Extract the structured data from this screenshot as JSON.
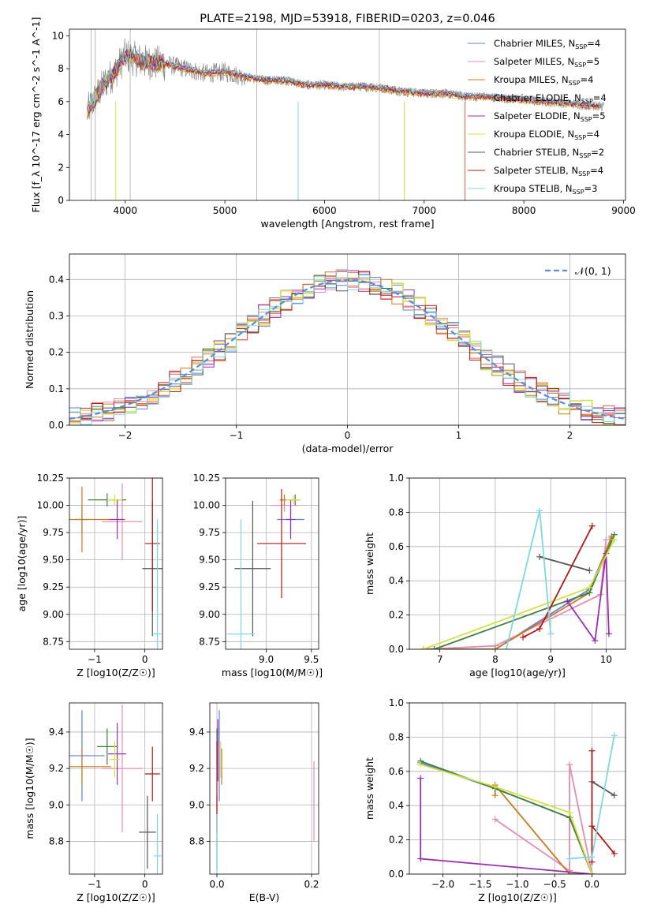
{
  "chart_data": [
    {
      "id": "spectrum",
      "type": "line",
      "title": "PLATE=2198, MJD=53918, FIBERID=0203, z=0.046",
      "xlabel": "wavelength [Angstrom, rest frame]",
      "ylabel": "Flux [f_λ 10^-17 erg cm^-2 s^-1 A^-1]",
      "xlim": [
        3440,
        9020
      ],
      "ylim": [
        0,
        10.4
      ],
      "xticks": [
        4000,
        5000,
        6000,
        7000,
        8000,
        9000
      ],
      "yticks": [
        0,
        2,
        4,
        6,
        8,
        10
      ],
      "legend": "top-right",
      "data_envelope": {
        "x": [
          3600,
          3700,
          3800,
          3900,
          4000,
          4200,
          4400,
          4600,
          4800,
          5000,
          5200,
          5400,
          5600,
          5800,
          6000,
          6200,
          6400,
          6600,
          6800,
          7000,
          7200,
          7400,
          7600,
          7800,
          8000,
          8200,
          8400,
          8600,
          8800
        ],
        "y": [
          5.2,
          6.2,
          7.2,
          7.8,
          8.8,
          8.4,
          8.3,
          8.0,
          7.7,
          7.8,
          7.5,
          7.3,
          7.3,
          7.0,
          7.0,
          6.9,
          6.9,
          6.8,
          6.6,
          6.5,
          6.5,
          6.3,
          6.3,
          6.2,
          6.1,
          6.0,
          5.9,
          5.8,
          5.7
        ]
      },
      "model_offsets": [
        0.05,
        -0.05,
        0.1,
        -0.1,
        0.08,
        -0.08,
        0.02,
        -0.02,
        0.12
      ],
      "legend_entries": [
        {
          "name": "Chabrier MILES, N",
          "sub": "SSP",
          "suffix": "=4",
          "color": "#5f7fdd"
        },
        {
          "name": "Salpeter MILES, N",
          "sub": "SSP",
          "suffix": "=5",
          "color": "#e58cb4"
        },
        {
          "name": "Kroupa MILES, N",
          "sub": "SSP",
          "suffix": "=4",
          "color": "#c87a1e"
        },
        {
          "name": "Chabrier ELODIE, N",
          "sub": "SSP",
          "suffix": "=4",
          "color": "#e06040"
        },
        {
          "name": "Salpeter ELODIE, N",
          "sub": "SSP",
          "suffix": "=5",
          "color": "#9a2fb0"
        },
        {
          "name": "Kroupa ELODIE, N",
          "sub": "SSP",
          "suffix": "=4",
          "color": "#d4e040"
        },
        {
          "name": "Chabrier STELIB, N",
          "sub": "SSP",
          "suffix": "=2",
          "color": "#555555"
        },
        {
          "name": "Salpeter STELIB, N",
          "sub": "SSP",
          "suffix": "=4",
          "color": "#b01818"
        },
        {
          "name": "Kroupa STELIB, N",
          "sub": "SSP",
          "suffix": "=3",
          "color": "#7ed8e0"
        }
      ]
    },
    {
      "id": "residuals",
      "type": "line",
      "xlabel": "(data-model)/error",
      "ylabel": "Normed distribution",
      "xlim": [
        -2.5,
        2.5
      ],
      "ylim": [
        0,
        0.47
      ],
      "xticks": [
        -2,
        -1,
        0,
        1,
        2
      ],
      "yticks": [
        0.0,
        0.1,
        0.2,
        0.3,
        0.4
      ],
      "legend": "top-right",
      "gaussian_label": "𝒩(0, 1)",
      "gaussian_color": "#5b8bd9",
      "series_colors": [
        "#5f7fdd",
        "#e58cb4",
        "#c87a1e",
        "#e06040",
        "#9a2fb0",
        "#d4e040",
        "#555555",
        "#b01818",
        "#7ed8e0"
      ]
    },
    {
      "id": "age-vs-Z",
      "type": "scatter",
      "xlabel": "Z [log10(Z/Z☉)]",
      "ylabel": "age [log10(age/yr)]",
      "xlim": [
        -1.5,
        0.35
      ],
      "ylim": [
        8.68,
        10.25
      ],
      "xticks": [
        -1,
        0
      ],
      "yticks": [
        8.75,
        9.0,
        9.25,
        9.5,
        9.75,
        10.0,
        10.25
      ],
      "points": [
        {
          "x": -1.25,
          "y": 9.87,
          "ex": 0.12,
          "ey": 0.12,
          "color": "#5f7fdd"
        },
        {
          "x": -0.45,
          "y": 9.85,
          "ex": 0.4,
          "ey": 0.35,
          "color": "#e58cb4"
        },
        {
          "x": -1.25,
          "y": 9.87,
          "ex": 0.58,
          "ey": 0.3,
          "color": "#c87a1e"
        },
        {
          "x": -0.75,
          "y": 10.05,
          "ex": 0.38,
          "ey": 0.06,
          "color": "#3f7f3f"
        },
        {
          "x": -0.55,
          "y": 9.87,
          "ex": 0.15,
          "ey": 0.18,
          "color": "#9a2fb0"
        },
        {
          "x": -0.6,
          "y": 10.05,
          "ex": 0.15,
          "ey": 0.05,
          "color": "#d4e040"
        },
        {
          "x": 0.15,
          "y": 9.42,
          "ex": 0.2,
          "ey": 0.62,
          "color": "#555555"
        },
        {
          "x": 0.15,
          "y": 9.65,
          "ex": 0.15,
          "ey": 0.62,
          "color": "#b01818"
        },
        {
          "x": 0.25,
          "y": 8.82,
          "ex": 0.08,
          "ey": 1.05,
          "color": "#7ed8e0"
        }
      ]
    },
    {
      "id": "age-vs-mass",
      "type": "scatter",
      "xlabel": "mass [log10(M/M☉)]",
      "ylabel": "",
      "xlim": [
        8.55,
        9.58
      ],
      "ylim": [
        8.68,
        10.25
      ],
      "xticks": [
        9.0,
        9.5
      ],
      "yticks": [
        8.75,
        9.0,
        9.25,
        9.5,
        9.75,
        10.0,
        10.25
      ],
      "points": [
        {
          "x": 9.27,
          "y": 9.87,
          "ex": 0.15,
          "ey": 0.12,
          "color": "#5f7fdd"
        },
        {
          "x": 9.2,
          "y": 10.0,
          "ex": 0.15,
          "ey": 0.06,
          "color": "#e58cb4"
        },
        {
          "x": 9.2,
          "y": 10.05,
          "ex": 0.05,
          "ey": 0.05,
          "color": "#c87a1e"
        },
        {
          "x": 9.32,
          "y": 10.05,
          "ex": 0.05,
          "ey": 0.05,
          "color": "#3f7f3f"
        },
        {
          "x": 9.27,
          "y": 9.87,
          "ex": 0.05,
          "ey": 0.18,
          "color": "#9a2fb0"
        },
        {
          "x": 9.3,
          "y": 10.05,
          "ex": 0.08,
          "ey": 0.04,
          "color": "#d4e040"
        },
        {
          "x": 8.85,
          "y": 9.42,
          "ex": 0.2,
          "ey": 0.62,
          "color": "#555555"
        },
        {
          "x": 9.17,
          "y": 9.65,
          "ex": 0.27,
          "ey": 0.5,
          "color": "#b01818"
        },
        {
          "x": 8.72,
          "y": 8.82,
          "ex": 0.15,
          "ey": 1.05,
          "color": "#7ed8e0"
        }
      ]
    },
    {
      "id": "weight-vs-age",
      "type": "line",
      "xlabel": "age [log10(age/yr)]",
      "ylabel": "mass weight",
      "xlim": [
        6.45,
        10.35
      ],
      "ylim": [
        0,
        1.0
      ],
      "xticks": [
        7,
        8,
        9,
        10
      ],
      "yticks": [
        0.0,
        0.2,
        0.4,
        0.6,
        0.8,
        1.0
      ],
      "series": [
        {
          "name": "Chabrier MILES",
          "color": "#5f7fdd",
          "x": [
            6.7,
            8.0,
            9.7,
            10.1
          ],
          "y": [
            0.0,
            0.0,
            0.35,
            0.65
          ]
        },
        {
          "name": "Salpeter MILES",
          "color": "#e58cb4",
          "x": [
            6.7,
            8.0,
            9.9,
            10.0
          ],
          "y": [
            0.0,
            0.02,
            0.32,
            0.64
          ]
        },
        {
          "name": "Kroupa MILES",
          "color": "#c87a1e",
          "x": [
            6.7,
            8.0,
            9.7,
            10.1
          ],
          "y": [
            0.0,
            0.0,
            0.33,
            0.66
          ]
        },
        {
          "name": "Chabrier ELODIE",
          "color": "#3f7f3f",
          "x": [
            6.9,
            9.7,
            10.15
          ],
          "y": [
            0.0,
            0.33,
            0.67
          ]
        },
        {
          "name": "Salpeter ELODIE",
          "color": "#9a2fb0",
          "x": [
            9.3,
            9.8,
            10.0,
            10.05
          ],
          "y": [
            0.28,
            0.05,
            0.56,
            0.09
          ]
        },
        {
          "name": "Kroupa ELODIE",
          "color": "#d4e040",
          "x": [
            6.7,
            9.7,
            10.15
          ],
          "y": [
            0.0,
            0.36,
            0.64
          ]
        },
        {
          "name": "Chabrier STELIB",
          "color": "#555555",
          "x": [
            8.8,
            9.7
          ],
          "y": [
            0.54,
            0.46
          ]
        },
        {
          "name": "Salpeter STELIB",
          "color": "#b01818",
          "x": [
            8.5,
            8.8,
            9.75
          ],
          "y": [
            0.07,
            0.12,
            0.72
          ]
        },
        {
          "name": "Kroupa STELIB",
          "color": "#7ed8e0",
          "x": [
            8.2,
            8.8,
            9.0
          ],
          "y": [
            0.0,
            0.81,
            0.09
          ]
        }
      ]
    },
    {
      "id": "mass-vs-Z",
      "type": "scatter",
      "xlabel": "Z [log10(Z/Z☉)]",
      "ylabel": "mass [log10(M/M☉)]",
      "xlim": [
        -1.5,
        0.35
      ],
      "ylim": [
        8.62,
        9.56
      ],
      "xticks": [
        -1,
        0
      ],
      "yticks": [
        8.8,
        9.0,
        9.2,
        9.4
      ],
      "points": [
        {
          "x": -1.25,
          "y": 9.27,
          "ex": 0.45,
          "ey": 0.25,
          "color": "#5f7fdd"
        },
        {
          "x": -0.45,
          "y": 9.2,
          "ex": 0.4,
          "ey": 0.35,
          "color": "#e58cb4"
        },
        {
          "x": -1.25,
          "y": 9.21,
          "ex": 0.58,
          "ey": 0.1,
          "color": "#c87a1e"
        },
        {
          "x": -0.75,
          "y": 9.32,
          "ex": 0.2,
          "ey": 0.1,
          "color": "#3f7f3f"
        },
        {
          "x": -0.55,
          "y": 9.28,
          "ex": 0.18,
          "ey": 0.17,
          "color": "#9a2fb0"
        },
        {
          "x": -0.6,
          "y": 9.25,
          "ex": 0.1,
          "ey": 0.1,
          "color": "#d4e040"
        },
        {
          "x": 0.05,
          "y": 8.85,
          "ex": 0.17,
          "ey": 0.2,
          "color": "#555555"
        },
        {
          "x": 0.15,
          "y": 9.17,
          "ex": 0.15,
          "ey": 0.15,
          "color": "#b01818"
        },
        {
          "x": 0.25,
          "y": 8.72,
          "ex": 0.08,
          "ey": 0.23,
          "color": "#7ed8e0"
        }
      ]
    },
    {
      "id": "mass-vs-ebv",
      "type": "scatter",
      "xlabel": "E(B-V)",
      "ylabel": "",
      "xlim": [
        -0.015,
        0.215
      ],
      "ylim": [
        8.62,
        9.56
      ],
      "xticks": [
        0.0,
        0.2
      ],
      "yticks": [
        8.8,
        9.0,
        9.2,
        9.4
      ],
      "points": [
        {
          "x": 0.005,
          "y": 9.27,
          "ex": 0,
          "ey": 0.25,
          "color": "#5f7fdd"
        },
        {
          "x": 0.205,
          "y": 9.02,
          "ex": 0,
          "ey": 0.22,
          "color": "#e58cb4"
        },
        {
          "x": 0.01,
          "y": 9.21,
          "ex": 0,
          "ey": 0.1,
          "color": "#c87a1e"
        },
        {
          "x": 0.0,
          "y": 9.32,
          "ex": 0,
          "ey": 0.1,
          "color": "#3f7f3f"
        },
        {
          "x": 0.002,
          "y": 9.3,
          "ex": 0,
          "ey": 0.17,
          "color": "#9a2fb0"
        },
        {
          "x": 0.008,
          "y": 9.25,
          "ex": 0,
          "ey": 0.1,
          "color": "#d4e040"
        },
        {
          "x": 0.0,
          "y": 8.85,
          "ex": 0,
          "ey": 0.2,
          "color": "#555555"
        },
        {
          "x": 0.0,
          "y": 9.1,
          "ex": 0,
          "ey": 0.25,
          "color": "#b01818"
        },
        {
          "x": 0.0,
          "y": 8.72,
          "ex": 0,
          "ey": 0.23,
          "color": "#7ed8e0"
        }
      ]
    },
    {
      "id": "weight-vs-Z",
      "type": "line",
      "xlabel": "Z [log10(Z/Z☉)]",
      "ylabel": "mass weight",
      "xlim": [
        -2.45,
        0.45
      ],
      "ylim": [
        0,
        1.0
      ],
      "xticks": [
        -2.0,
        -1.5,
        -1.0,
        -0.5,
        0.0
      ],
      "yticks": [
        0.0,
        0.2,
        0.4,
        0.6,
        0.8,
        1.0
      ],
      "series": [
        {
          "name": "Chabrier MILES",
          "color": "#5f7fdd",
          "x": [
            -2.3,
            -1.3,
            -0.3,
            0.0
          ],
          "y": [
            0.65,
            0.5,
            0.33,
            0.0
          ]
        },
        {
          "name": "Salpeter MILES",
          "color": "#e58cb4",
          "x": [
            -1.3,
            -0.3,
            -0.3,
            0.0
          ],
          "y": [
            0.32,
            0.02,
            0.64,
            0.0
          ]
        },
        {
          "name": "Kroupa MILES",
          "color": "#c87a1e",
          "x": [
            -1.3,
            -1.3,
            -0.3,
            0.0
          ],
          "y": [
            0.46,
            0.52,
            0.0,
            0.0
          ]
        },
        {
          "name": "Chabrier ELODIE",
          "color": "#3f7f3f",
          "x": [
            -2.3,
            -1.3,
            -0.3,
            0.0
          ],
          "y": [
            0.66,
            0.5,
            0.33,
            0.0
          ]
        },
        {
          "name": "Salpeter ELODIE",
          "color": "#9a2fb0",
          "x": [
            -2.3,
            -2.3,
            0.0
          ],
          "y": [
            0.56,
            0.09,
            0.0
          ]
        },
        {
          "name": "Kroupa ELODIE",
          "color": "#d4e040",
          "x": [
            -2.3,
            -1.3,
            -0.3,
            0.0
          ],
          "y": [
            0.64,
            0.51,
            0.36,
            0.0
          ]
        },
        {
          "name": "Chabrier STELIB",
          "color": "#555555",
          "x": [
            0.0,
            0.3
          ],
          "y": [
            0.54,
            0.46
          ]
        },
        {
          "name": "Salpeter STELIB",
          "color": "#b01818",
          "x": [
            0.0,
            0.0,
            0.0,
            0.3
          ],
          "y": [
            0.07,
            0.72,
            0.28,
            0.12
          ]
        },
        {
          "name": "Kroupa STELIB",
          "color": "#7ed8e0",
          "x": [
            -0.3,
            0.0,
            0.3
          ],
          "y": [
            0.09,
            0.1,
            0.81
          ]
        }
      ]
    }
  ]
}
